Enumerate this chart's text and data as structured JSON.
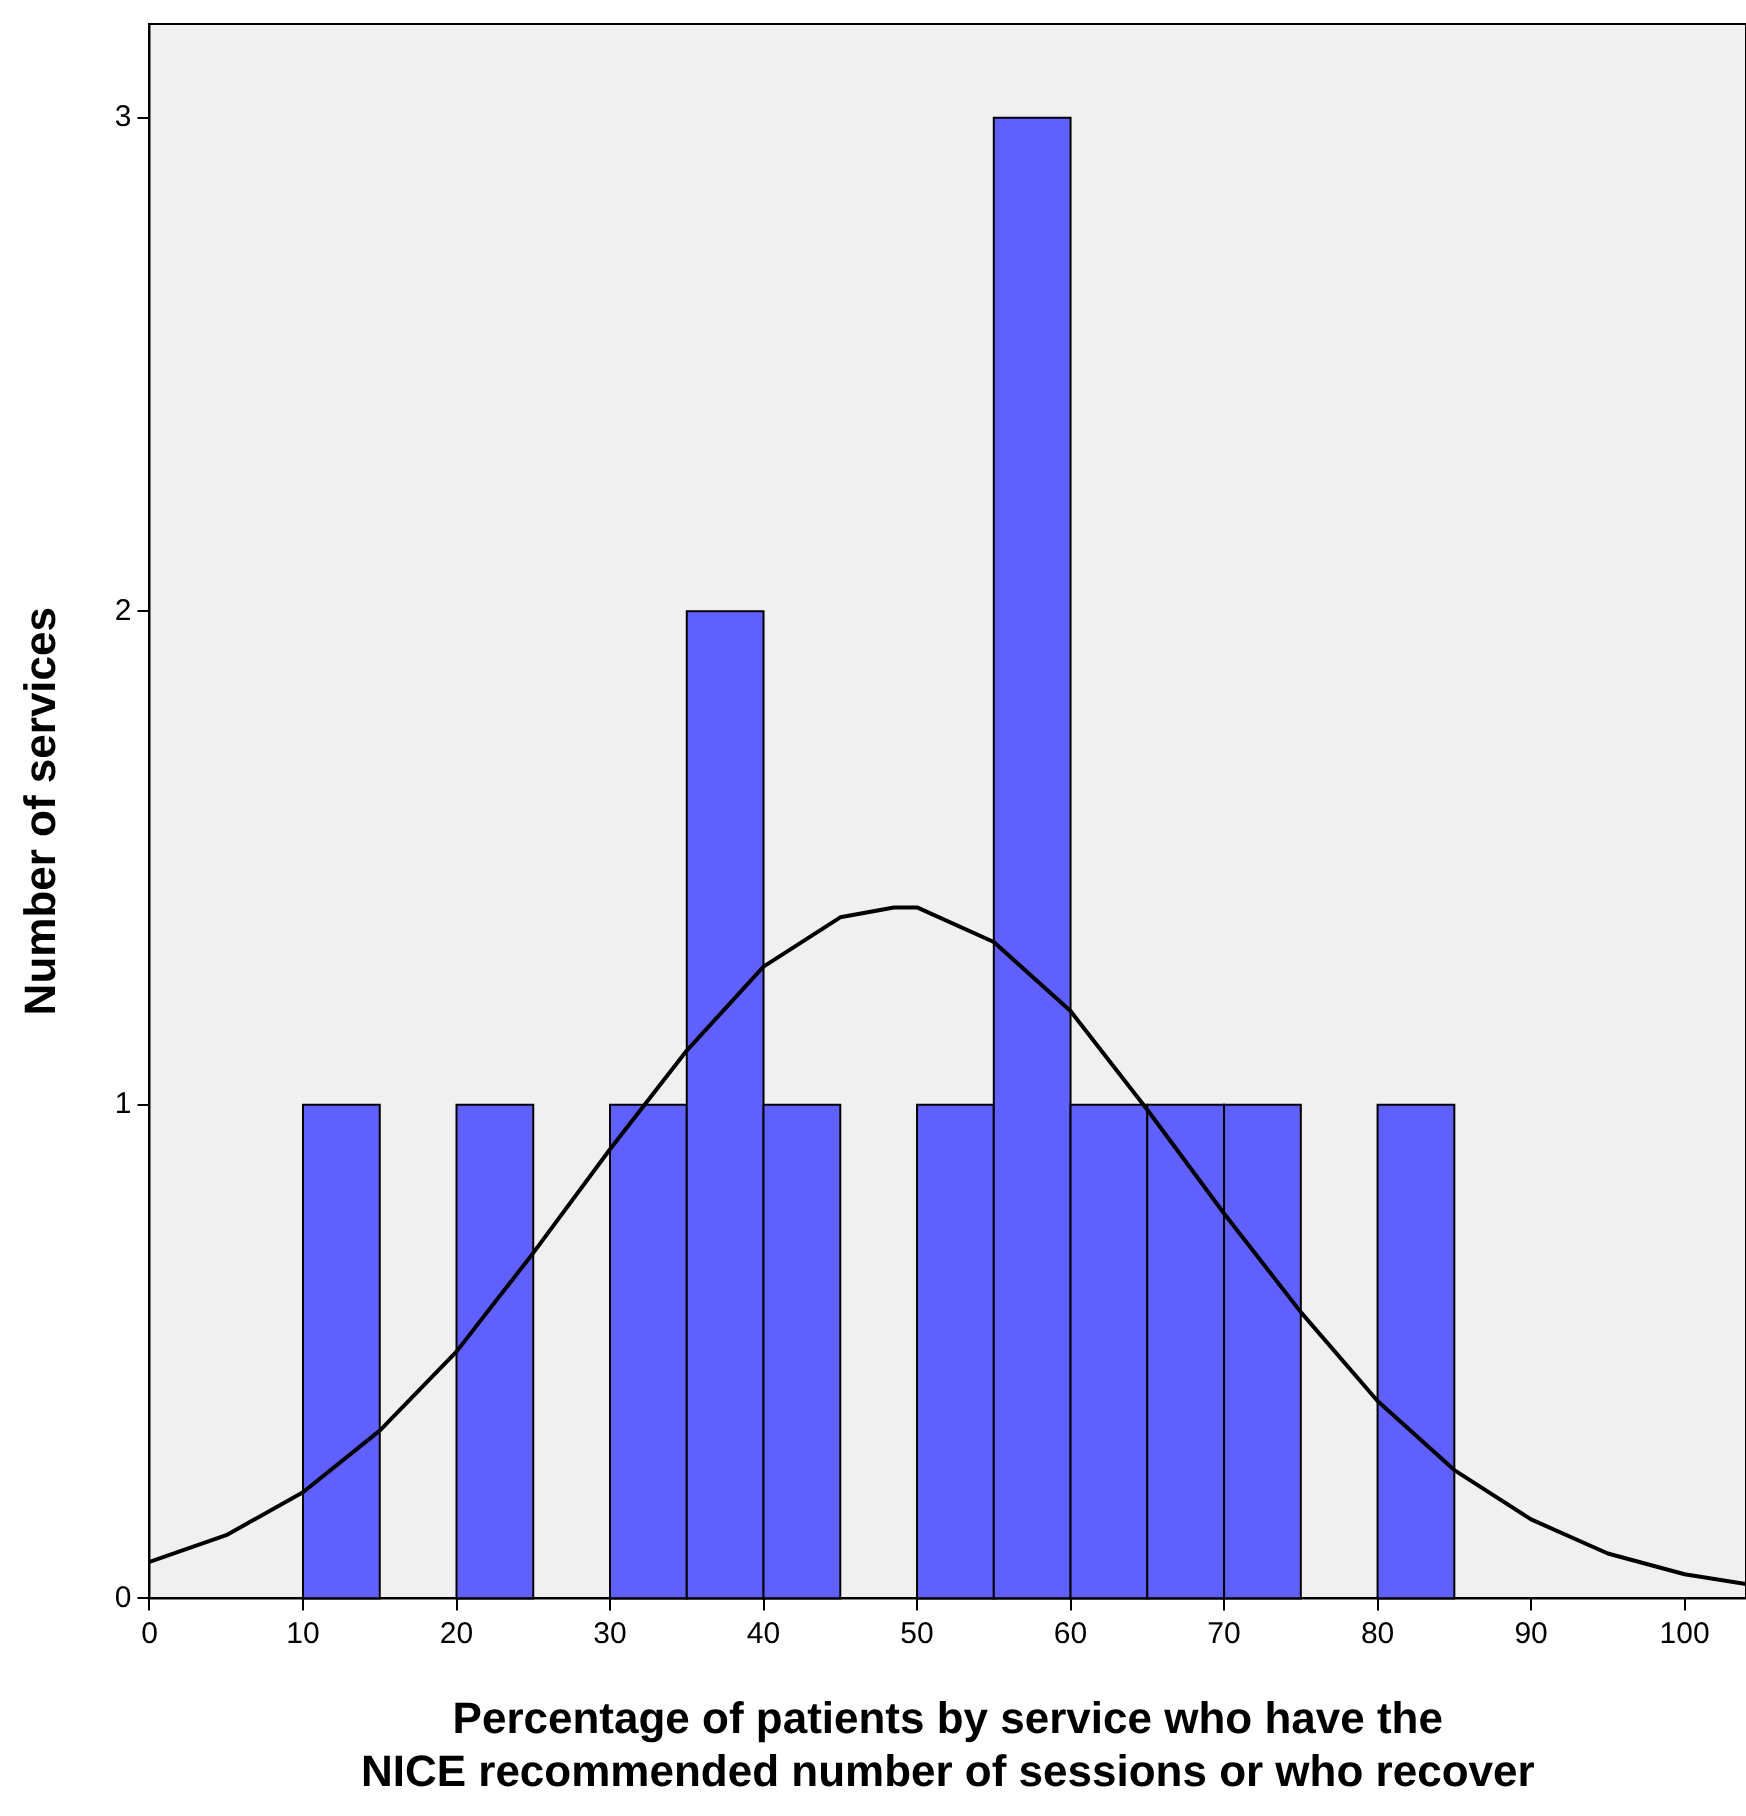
{
  "chart_data": {
    "type": "histogram",
    "xlabel": "Percentage of patients by service who have the\nNICE recommended number of sessions or who recover",
    "ylabel": "Number of services",
    "bins": [
      10,
      15,
      20,
      25,
      30,
      35,
      40,
      45,
      50,
      55,
      60,
      65,
      70,
      75,
      80,
      85
    ],
    "values": [
      1,
      0,
      1,
      0,
      1,
      2,
      1,
      0,
      1,
      3,
      1,
      1,
      1,
      0,
      1
    ],
    "color": "#6060ff",
    "series": [
      {
        "type": "line",
        "color": "#000000",
        "x": [
          0,
          5,
          10,
          15,
          20,
          25,
          30,
          35,
          40,
          45,
          48.5,
          50,
          55,
          60,
          65,
          70,
          75,
          80,
          85,
          90,
          95,
          100,
          104
        ],
        "values": [
          0.074,
          0.128,
          0.215,
          0.34,
          0.5,
          0.7,
          0.91,
          1.11,
          1.28,
          1.38,
          1.4,
          1.4,
          1.33,
          1.19,
          0.99,
          0.78,
          0.58,
          0.4,
          0.26,
          0.16,
          0.091,
          0.049,
          0.029
        ]
      }
    ],
    "xlim": [
      0,
      104
    ],
    "xticks": [
      0,
      10,
      20,
      30,
      40,
      50,
      60,
      70,
      80,
      90,
      100
    ],
    "ylim": [
      0,
      3.19
    ],
    "yticks": [
      0,
      1,
      2,
      3
    ],
    "grid": false,
    "legend": false,
    "marker": "none",
    "line_style": "solid"
  }
}
